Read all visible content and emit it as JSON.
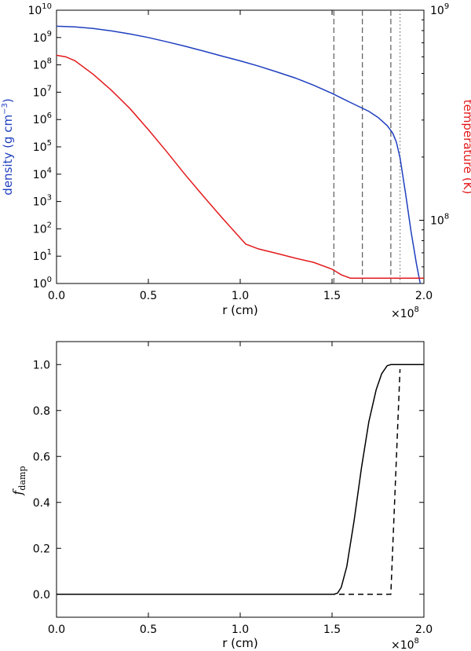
{
  "chart_data": [
    {
      "type": "line",
      "xlabel": "r (cm)",
      "x_multiplier": "×10",
      "x_multiplier_exp": "8",
      "xlim": [
        0.0,
        2.0
      ],
      "x_ticks": [
        "0.0",
        "0.5",
        "1.0",
        "1.5",
        "2.0"
      ],
      "y_left": {
        "label_main": "density (g cm",
        "label_sup": "−3",
        "label_end": ")",
        "scale": "log",
        "lim": [
          1,
          10000000000
        ],
        "tick_exponents": [
          "0",
          "1",
          "2",
          "3",
          "4",
          "5",
          "6",
          "7",
          "8",
          "9",
          "10"
        ],
        "color": "#1f3fbf"
      },
      "y_right": {
        "label": "temperature (K)",
        "scale": "log",
        "lim": [
          50000000,
          1000000000
        ],
        "tick_labels": [
          {
            "value": 100000000,
            "base": "10",
            "exp": "8"
          },
          {
            "value": 1000000000,
            "base": "10",
            "exp": "9"
          }
        ],
        "color": "#e31a1c"
      },
      "series": [
        {
          "axis": "left",
          "color": "#1f3fbf",
          "x": [
            0.0,
            0.1,
            0.2,
            0.3,
            0.4,
            0.5,
            0.6,
            0.7,
            0.8,
            0.9,
            1.0,
            1.1,
            1.2,
            1.3,
            1.4,
            1.5,
            1.6,
            1.7,
            1.75,
            1.8,
            1.83,
            1.85,
            1.87,
            1.9,
            1.93,
            1.96,
            1.98
          ],
          "y": [
            2600000000,
            2450000000,
            2150000000,
            1750000000,
            1350000000,
            1000000000,
            700000000,
            480000000,
            320000000,
            210000000,
            140000000,
            90000000,
            55000000,
            33000000,
            18000000,
            9000000,
            4200000,
            2000000,
            1200000,
            600000,
            320000,
            150000,
            40000,
            2000,
            80,
            5,
            1
          ]
        },
        {
          "axis": "right",
          "color": "#e31a1c",
          "x": [
            0.0,
            0.05,
            0.1,
            0.2,
            0.3,
            0.4,
            0.5,
            0.6,
            0.7,
            0.8,
            0.9,
            1.03,
            1.1,
            1.2,
            1.3,
            1.4,
            1.5,
            1.55,
            1.6,
            1.65,
            1.8,
            1.9,
            2.0
          ],
          "y": [
            610000000,
            600000000,
            575000000,
            495000000,
            415000000,
            340000000,
            270000000,
            212000000,
            165000000,
            130000000,
            103000000,
            77000000,
            73000000,
            69500000,
            66000000,
            63000000,
            58500000,
            55000000,
            53000000,
            53000000,
            53000000,
            53000000,
            53000000
          ]
        }
      ],
      "vlines": [
        {
          "x": 1.51,
          "style": "dashed"
        },
        {
          "x": 1.665,
          "style": "dashed"
        },
        {
          "x": 1.82,
          "style": "dashed"
        },
        {
          "x": 1.87,
          "style": "dotted"
        }
      ]
    },
    {
      "type": "line",
      "xlabel": "r (cm)",
      "x_multiplier": "×10",
      "x_multiplier_exp": "8",
      "xlim": [
        0.0,
        2.0
      ],
      "x_ticks": [
        "0.0",
        "0.5",
        "1.0",
        "1.5",
        "2.0"
      ],
      "ylabel_main": "f",
      "ylabel_sub": "damp",
      "ylim": [
        -0.1,
        1.1
      ],
      "y_ticks": [
        "0.0",
        "0.2",
        "0.4",
        "0.6",
        "0.8",
        "1.0"
      ],
      "series": [
        {
          "style": "solid",
          "color": "#000000",
          "x": [
            0.0,
            1.51,
            1.53,
            1.55,
            1.58,
            1.62,
            1.66,
            1.7,
            1.74,
            1.77,
            1.8,
            1.82,
            1.84,
            2.0
          ],
          "y": [
            0.0,
            0.0,
            0.005,
            0.03,
            0.12,
            0.32,
            0.55,
            0.75,
            0.89,
            0.96,
            0.995,
            1.0,
            1.0,
            1.0
          ]
        },
        {
          "style": "dashed",
          "color": "#000000",
          "x": [
            0.0,
            1.82,
            1.87
          ],
          "y": [
            0.0,
            0.0,
            0.98
          ]
        }
      ]
    }
  ]
}
